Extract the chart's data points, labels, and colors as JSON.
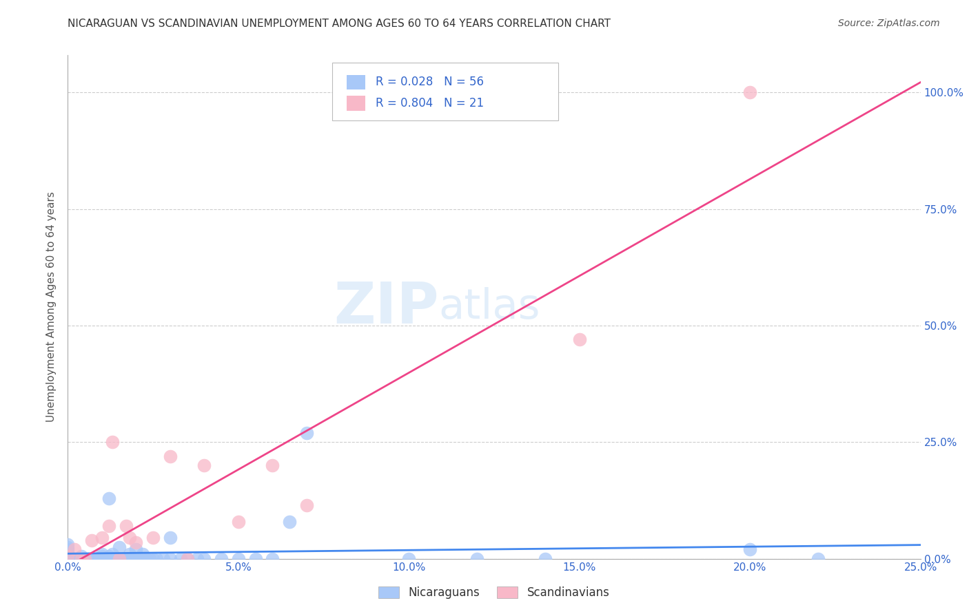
{
  "title": "NICARAGUAN VS SCANDINAVIAN UNEMPLOYMENT AMONG AGES 60 TO 64 YEARS CORRELATION CHART",
  "source": "Source: ZipAtlas.com",
  "ylabel": "Unemployment Among Ages 60 to 64 years",
  "xlim": [
    0.0,
    0.25
  ],
  "ylim": [
    0.0,
    1.08
  ],
  "xticks": [
    0.0,
    0.05,
    0.1,
    0.15,
    0.2,
    0.25
  ],
  "yticks": [
    0.0,
    0.25,
    0.5,
    0.75,
    1.0
  ],
  "nicaraguan_color": "#A8C8F8",
  "scandinavian_color": "#F8B8C8",
  "trend_nicaraguan_color": "#4488EE",
  "trend_scandinavian_color": "#EE4488",
  "R_nicaraguan": 0.028,
  "N_nicaraguan": 56,
  "R_scandinavian": 0.804,
  "N_scandinavian": 21,
  "legend_text_color": "#3366CC",
  "background_color": "#FFFFFF",
  "grid_color": "#CCCCCC",
  "title_color": "#333333",
  "nicaraguan_x": [
    0.0,
    0.0,
    0.0,
    0.0,
    0.0,
    0.0,
    0.002,
    0.003,
    0.004,
    0.005,
    0.006,
    0.007,
    0.008,
    0.009,
    0.01,
    0.01,
    0.011,
    0.012,
    0.012,
    0.013,
    0.013,
    0.014,
    0.015,
    0.015,
    0.016,
    0.017,
    0.018,
    0.018,
    0.019,
    0.02,
    0.02,
    0.021,
    0.022,
    0.022,
    0.023,
    0.024,
    0.025,
    0.026,
    0.028,
    0.03,
    0.03,
    0.033,
    0.035,
    0.038,
    0.04,
    0.045,
    0.05,
    0.055,
    0.06,
    0.065,
    0.07,
    0.1,
    0.12,
    0.14,
    0.2,
    0.22
  ],
  "nicaraguan_y": [
    0.005,
    0.01,
    0.015,
    0.02,
    0.025,
    0.03,
    0.0,
    0.0,
    0.005,
    0.0,
    0.0,
    0.0,
    0.0,
    0.0,
    0.005,
    0.01,
    0.0,
    0.005,
    0.13,
    0.0,
    0.01,
    0.0,
    0.0,
    0.025,
    0.0,
    0.0,
    0.0,
    0.01,
    0.0,
    0.0,
    0.02,
    0.0,
    0.0,
    0.01,
    0.0,
    0.0,
    0.0,
    0.0,
    0.0,
    0.0,
    0.045,
    0.0,
    0.0,
    0.0,
    0.0,
    0.0,
    0.0,
    0.0,
    0.0,
    0.08,
    0.27,
    0.0,
    0.0,
    0.0,
    0.02,
    0.0
  ],
  "scandinavian_x": [
    0.0,
    0.002,
    0.004,
    0.005,
    0.007,
    0.01,
    0.012,
    0.013,
    0.015,
    0.017,
    0.018,
    0.02,
    0.025,
    0.03,
    0.035,
    0.04,
    0.05,
    0.06,
    0.07,
    0.15,
    0.2
  ],
  "scandinavian_y": [
    0.005,
    0.02,
    0.0,
    0.0,
    0.04,
    0.045,
    0.07,
    0.25,
    0.0,
    0.07,
    0.045,
    0.035,
    0.045,
    0.22,
    0.0,
    0.2,
    0.08,
    0.2,
    0.115,
    0.47,
    1.0
  ]
}
